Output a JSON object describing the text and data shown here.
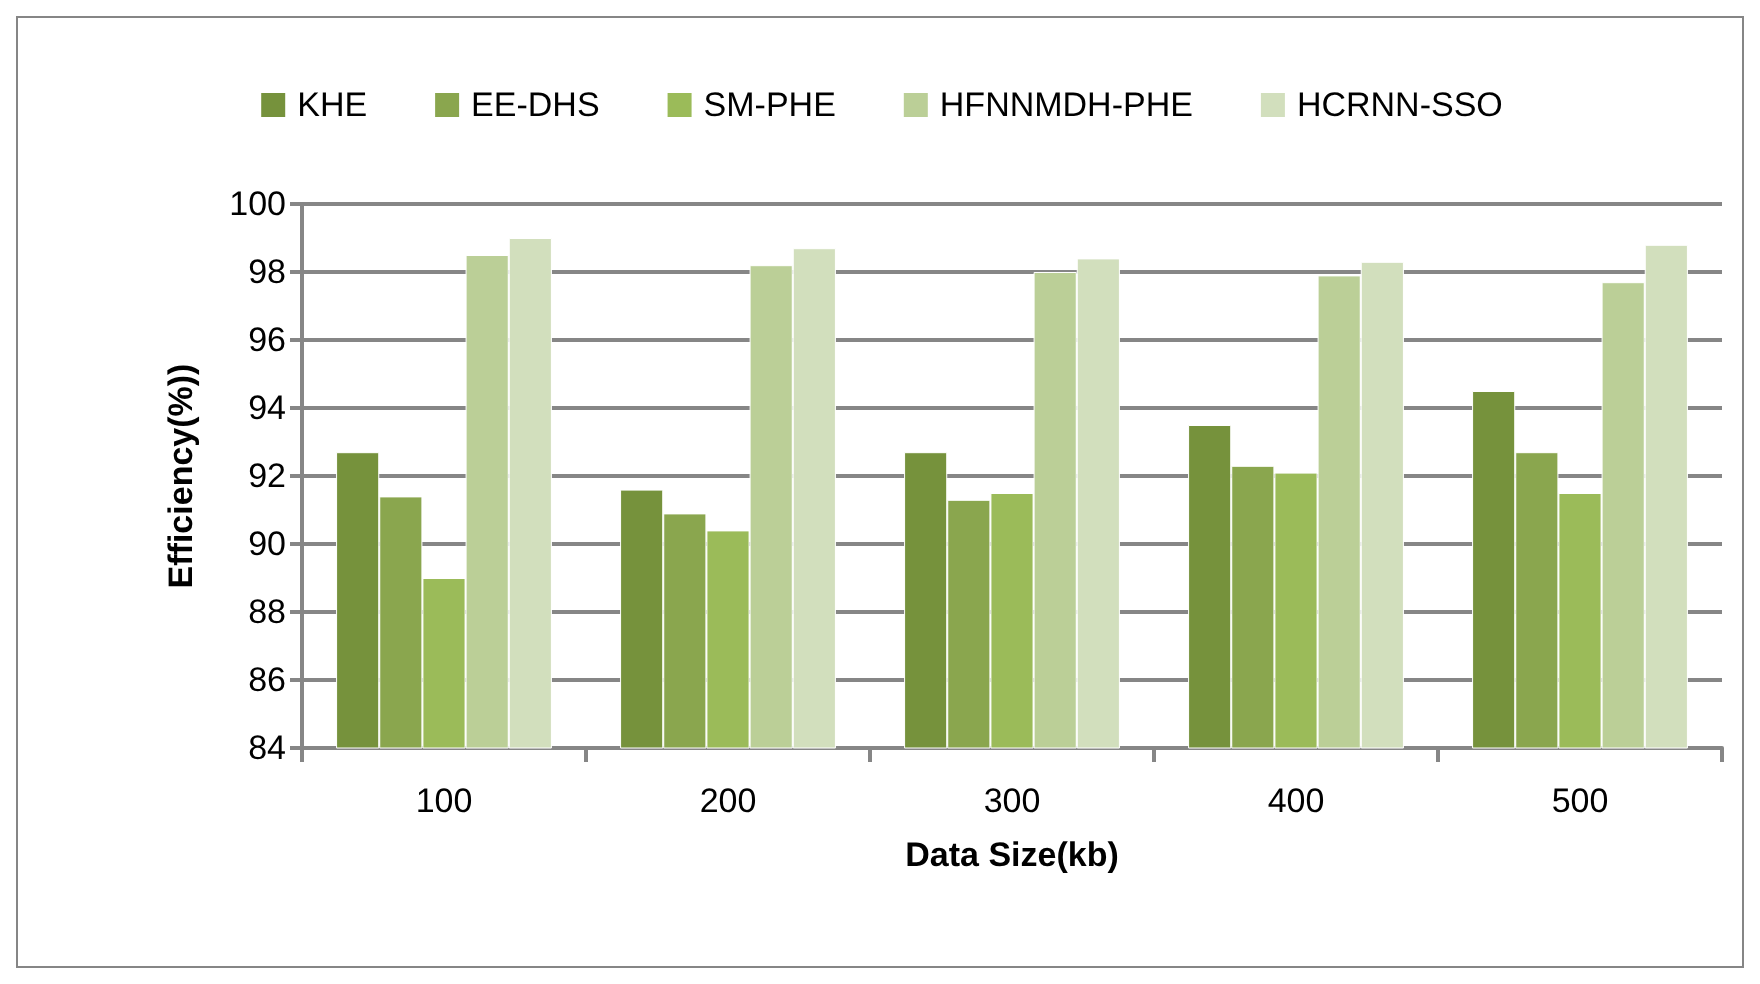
{
  "chart_data": {
    "type": "bar",
    "xlabel": "Data Size(kb)",
    "ylabel": "Efficiency(%))",
    "categories": [
      "100",
      "200",
      "300",
      "400",
      "500"
    ],
    "series": [
      {
        "name": "KHE",
        "color": "#76923c",
        "values": [
          92.7,
          91.6,
          92.7,
          93.5,
          94.5
        ]
      },
      {
        "name": "EE-DHS",
        "color": "#8aa64e",
        "values": [
          91.4,
          90.9,
          91.3,
          92.3,
          92.7
        ]
      },
      {
        "name": "SM-PHE",
        "color": "#9bbb59",
        "values": [
          89.0,
          90.4,
          91.5,
          92.1,
          91.5
        ]
      },
      {
        "name": "HFNNMDH-PHE",
        "color": "#bbcf97",
        "values": [
          98.5,
          98.2,
          98.0,
          97.9,
          97.7
        ]
      },
      {
        "name": "HCRNN-SSO",
        "color": "#d2dfbd",
        "values": [
          99.0,
          98.7,
          98.4,
          98.3,
          98.8
        ]
      }
    ],
    "ylim": [
      84,
      100
    ],
    "yticks": [
      84,
      86,
      88,
      90,
      92,
      94,
      96,
      98,
      100
    ],
    "grid": "y",
    "legend": "top"
  }
}
